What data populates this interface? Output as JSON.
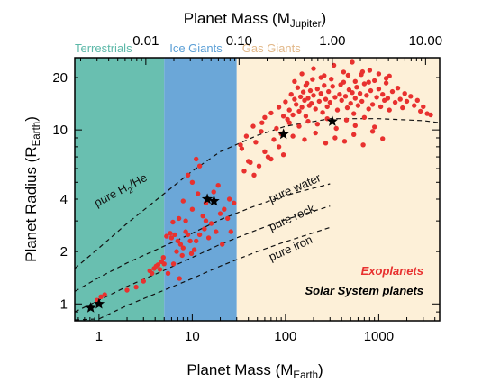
{
  "chart_data": {
    "type": "scatter",
    "x_scale": "log",
    "y_scale": "log",
    "xlim": [
      0.55,
      4500
    ],
    "ylim": [
      0.8,
      26
    ],
    "xlabel": {
      "main": "Planet Mass (M",
      "sub": "Earth",
      "close": ")"
    },
    "ylabel": {
      "main": "Planet Radius (R",
      "sub": "Earth",
      "close": ")"
    },
    "top_axis": {
      "label": {
        "main": "Planet Mass (M",
        "sub": "Jupiter",
        "close": ")"
      },
      "earth_masses_per_unit": 317.8,
      "ticks": [
        {
          "label": "0.01",
          "value": 0.01
        },
        {
          "label": "0.10",
          "value": 0.1
        },
        {
          "label": "1.00",
          "value": 1.0
        },
        {
          "label": "10.00",
          "value": 10.0
        }
      ]
    },
    "x_ticks": [
      {
        "label": "1",
        "value": 1
      },
      {
        "label": "10",
        "value": 10
      },
      {
        "label": "100",
        "value": 100
      },
      {
        "label": "1000",
        "value": 1000
      }
    ],
    "y_ticks": [
      {
        "label": "1",
        "value": 1
      },
      {
        "label": "2",
        "value": 2
      },
      {
        "label": "4",
        "value": 4
      },
      {
        "label": "10",
        "value": 10
      },
      {
        "label": "20",
        "value": 20
      }
    ],
    "regions": [
      {
        "name": "Terrestrials",
        "x_range": [
          0.55,
          5
        ],
        "color": "#69bfb0",
        "label_color": "#5cb8a8"
      },
      {
        "name": "Ice Giants",
        "x_range": [
          5,
          30
        ],
        "color": "#6ba7d8",
        "label_color": "#5b9fd6"
      },
      {
        "name": "Gas Giants",
        "x_range": [
          30,
          4500
        ],
        "color": "#fdf0d8",
        "label_color": "#e2b889"
      }
    ],
    "models": [
      {
        "name": "pure H2/He",
        "label": {
          "pre": "pure H",
          "sub": "2",
          "post": "/He"
        },
        "label_at": [
          0.95,
          3.6
        ],
        "rotate": -28,
        "points": [
          [
            0.55,
            1.6
          ],
          [
            1,
            2.1
          ],
          [
            2,
            2.9
          ],
          [
            5,
            4.3
          ],
          [
            10,
            5.8
          ],
          [
            20,
            7.5
          ],
          [
            50,
            9.3
          ],
          [
            100,
            10.5
          ],
          [
            300,
            11.6
          ],
          [
            1000,
            11.6
          ],
          [
            3000,
            11.3
          ],
          [
            4500,
            11.0
          ]
        ]
      },
      {
        "name": "pure water",
        "label": {
          "pre": "pure water",
          "sub": "",
          "post": ""
        },
        "label_at": [
          70,
          3.8
        ],
        "rotate": -24,
        "points": [
          [
            0.55,
            1.18
          ],
          [
            1,
            1.42
          ],
          [
            2,
            1.72
          ],
          [
            5,
            2.15
          ],
          [
            10,
            2.55
          ],
          [
            20,
            3.05
          ],
          [
            50,
            3.7
          ],
          [
            100,
            4.2
          ],
          [
            300,
            4.9
          ]
        ]
      },
      {
        "name": "pure rock",
        "label": {
          "pre": "pure rock",
          "sub": "",
          "post": ""
        },
        "label_at": [
          70,
          2.62
        ],
        "rotate": -24,
        "points": [
          [
            0.55,
            0.9
          ],
          [
            1,
            1.05
          ],
          [
            2,
            1.26
          ],
          [
            5,
            1.56
          ],
          [
            10,
            1.85
          ],
          [
            20,
            2.2
          ],
          [
            50,
            2.67
          ],
          [
            100,
            3.05
          ],
          [
            300,
            3.65
          ]
        ]
      },
      {
        "name": "pure iron",
        "label": {
          "pre": "pure iron",
          "sub": "",
          "post": ""
        },
        "label_at": [
          70,
          1.76
        ],
        "rotate": -24,
        "points": [
          [
            0.55,
            0.81
          ],
          [
            1,
            0.82
          ],
          [
            2,
            0.98
          ],
          [
            5,
            1.2
          ],
          [
            10,
            1.4
          ],
          [
            20,
            1.65
          ],
          [
            50,
            2.0
          ],
          [
            100,
            2.28
          ],
          [
            300,
            2.75
          ]
        ]
      }
    ],
    "series": [
      {
        "name": "Exoplanets",
        "color": "#e8312f",
        "points": [
          [
            1.05,
            1.1
          ],
          [
            1.15,
            1.13
          ],
          [
            0.95,
            1.05
          ],
          [
            2.0,
            1.2
          ],
          [
            2.5,
            1.25
          ],
          [
            3.5,
            1.55
          ],
          [
            3.9,
            1.6
          ],
          [
            4.3,
            1.68
          ],
          [
            4.7,
            1.75
          ],
          [
            4.5,
            1.58
          ],
          [
            5.0,
            1.7
          ],
          [
            3.7,
            1.5
          ],
          [
            4.1,
            1.65
          ],
          [
            4.9,
            1.85
          ],
          [
            5.3,
            2.45
          ],
          [
            5.8,
            2.55
          ],
          [
            6.0,
            2.4
          ],
          [
            6.5,
            2.5
          ],
          [
            7.0,
            2.3
          ],
          [
            7.5,
            2.2
          ],
          [
            8.0,
            2.1
          ],
          [
            8.5,
            2.6
          ],
          [
            9.0,
            2.5
          ],
          [
            9.5,
            2.3
          ],
          [
            6.2,
            2.95
          ],
          [
            7.2,
            3.1
          ],
          [
            8.5,
            3.0
          ],
          [
            6.8,
            2.0
          ],
          [
            7.8,
            1.9
          ],
          [
            9.8,
            1.95
          ],
          [
            10.5,
            2.05
          ],
          [
            11.0,
            2.3
          ],
          [
            12.0,
            2.5
          ],
          [
            13.0,
            3.2
          ],
          [
            14.0,
            3.8
          ],
          [
            8.0,
            3.9
          ],
          [
            10.0,
            5.0
          ],
          [
            12.0,
            6.2
          ],
          [
            9.0,
            5.5
          ],
          [
            11.0,
            6.8
          ],
          [
            14.0,
            3.0
          ],
          [
            16.0,
            2.9
          ],
          [
            18.0,
            2.6
          ],
          [
            20.0,
            3.3
          ],
          [
            22.0,
            3.5
          ],
          [
            25.0,
            4.0
          ],
          [
            17.0,
            4.4
          ],
          [
            19.0,
            4.8
          ],
          [
            24.0,
            3.1
          ],
          [
            28.0,
            3.8
          ],
          [
            15.0,
            2.4
          ],
          [
            21.0,
            2.2
          ],
          [
            26.0,
            2.6
          ],
          [
            13.5,
            2.7
          ],
          [
            10.0,
            3.5
          ],
          [
            11.5,
            4.3
          ],
          [
            5.5,
            1.5
          ],
          [
            6.3,
            1.7
          ],
          [
            7.3,
            1.4
          ],
          [
            3.0,
            1.35
          ],
          [
            34,
            7.8
          ],
          [
            38,
            9.2
          ],
          [
            42,
            6.5
          ],
          [
            45,
            10.5
          ],
          [
            48,
            8.5
          ],
          [
            55,
            9.8
          ],
          [
            60,
            11.8
          ],
          [
            65,
            7.0
          ],
          [
            70,
            12.5
          ],
          [
            75,
            8.8
          ],
          [
            80,
            10.2
          ],
          [
            85,
            13.5
          ],
          [
            90,
            9.5
          ],
          [
            95,
            12.0
          ],
          [
            100,
            14.5
          ],
          [
            105,
            11.5
          ],
          [
            110,
            13.0
          ],
          [
            115,
            16.0
          ],
          [
            120,
            12.2
          ],
          [
            125,
            15.0
          ],
          [
            130,
            14.0
          ],
          [
            135,
            17.5
          ],
          [
            140,
            12.8
          ],
          [
            145,
            15.5
          ],
          [
            150,
            13.5
          ],
          [
            155,
            16.5
          ],
          [
            160,
            14.8
          ],
          [
            165,
            12.0
          ],
          [
            170,
            18.5
          ],
          [
            175,
            15.2
          ],
          [
            180,
            13.8
          ],
          [
            185,
            16.8
          ],
          [
            190,
            14.2
          ],
          [
            195,
            19.5
          ],
          [
            200,
            15.8
          ],
          [
            210,
            13.2
          ],
          [
            220,
            17.2
          ],
          [
            230,
            14.6
          ],
          [
            240,
            16.2
          ],
          [
            250,
            12.6
          ],
          [
            260,
            18.0
          ],
          [
            270,
            15.0
          ],
          [
            280,
            13.6
          ],
          [
            290,
            16.6
          ],
          [
            300,
            14.4
          ],
          [
            320,
            17.8
          ],
          [
            340,
            15.4
          ],
          [
            360,
            13.0
          ],
          [
            380,
            16.0
          ],
          [
            400,
            14.8
          ],
          [
            420,
            18.8
          ],
          [
            440,
            15.6
          ],
          [
            460,
            13.4
          ],
          [
            480,
            17.0
          ],
          [
            500,
            14.2
          ],
          [
            520,
            16.4
          ],
          [
            540,
            12.4
          ],
          [
            560,
            15.2
          ],
          [
            580,
            17.6
          ],
          [
            600,
            13.8
          ],
          [
            630,
            16.2
          ],
          [
            660,
            14.6
          ],
          [
            700,
            18.4
          ],
          [
            740,
            15.8
          ],
          [
            780,
            13.2
          ],
          [
            820,
            16.8
          ],
          [
            860,
            14.0
          ],
          [
            900,
            19.2
          ],
          [
            950,
            15.4
          ],
          [
            1000,
            17.2
          ],
          [
            1050,
            13.6
          ],
          [
            1100,
            16.0
          ],
          [
            1150,
            14.8
          ],
          [
            1200,
            18.6
          ],
          [
            1250,
            15.2
          ],
          [
            1300,
            13.0
          ],
          [
            1400,
            16.6
          ],
          [
            1500,
            14.4
          ],
          [
            1600,
            17.4
          ],
          [
            1700,
            15.0
          ],
          [
            1800,
            13.4
          ],
          [
            1900,
            16.2
          ],
          [
            2000,
            14.6
          ],
          [
            2200,
            15.6
          ],
          [
            2400,
            13.8
          ],
          [
            2600,
            14.8
          ],
          [
            2800,
            12.8
          ],
          [
            3000,
            13.6
          ],
          [
            3300,
            12.4
          ],
          [
            3600,
            12.2
          ],
          [
            150,
            21.0
          ],
          [
            200,
            22.5
          ],
          [
            260,
            20.5
          ],
          [
            330,
            23.5
          ],
          [
            420,
            21.5
          ],
          [
            520,
            24.5
          ],
          [
            650,
            20.8
          ],
          [
            800,
            22.0
          ],
          [
            1000,
            21.0
          ],
          [
            1300,
            20.4
          ],
          [
            110,
            11.0
          ],
          [
            140,
            10.5
          ],
          [
            175,
            11.2
          ],
          [
            220,
            10.8
          ],
          [
            280,
            11.6
          ],
          [
            350,
            10.2
          ],
          [
            450,
            11.4
          ],
          [
            560,
            10.6
          ],
          [
            700,
            11.8
          ],
          [
            900,
            10.4
          ],
          [
            120,
            9.2
          ],
          [
            160,
            8.8
          ],
          [
            210,
            9.6
          ],
          [
            270,
            8.4
          ],
          [
            340,
            9.0
          ],
          [
            430,
            8.6
          ],
          [
            540,
            9.4
          ],
          [
            680,
            8.2
          ],
          [
            860,
            9.8
          ],
          [
            1100,
            8.9
          ],
          [
            60,
            7.5
          ],
          [
            70,
            6.8
          ],
          [
            85,
            8.0
          ],
          [
            95,
            7.2
          ],
          [
            46,
            5.5
          ],
          [
            52,
            6.2
          ],
          [
            36,
            5.8
          ],
          [
            40,
            6.6
          ],
          [
            33,
            8.2
          ],
          [
            56,
            11.0
          ],
          [
            125,
            19.0
          ],
          [
            165,
            18.0
          ],
          [
            240,
            20.0
          ],
          [
            310,
            19.6
          ],
          [
            390,
            18.2
          ],
          [
            470,
            20.6
          ],
          [
            560,
            19.0
          ],
          [
            670,
            21.6
          ],
          [
            780,
            18.8
          ],
          [
            1200,
            19.8
          ]
        ]
      },
      {
        "name": "Solar System planets",
        "color": "#000000",
        "marker": "star",
        "points": [
          [
            0.815,
            0.95
          ],
          [
            1.0,
            1.0
          ],
          [
            14.5,
            4.0
          ],
          [
            17.1,
            3.9
          ],
          [
            95.2,
            9.45
          ],
          [
            317.8,
            11.2
          ]
        ]
      }
    ],
    "legend": "bottom-right"
  }
}
